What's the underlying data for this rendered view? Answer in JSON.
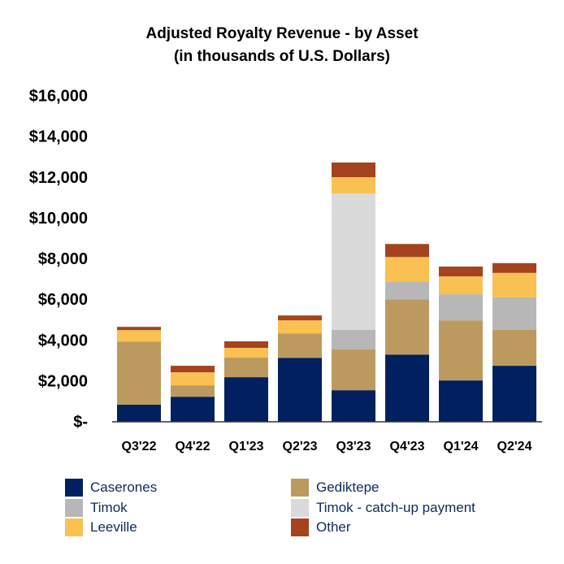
{
  "chart_data": {
    "type": "bar",
    "stacked": true,
    "title": "Adjusted Royalty Revenue - by Asset",
    "subtitle": "(in thousands of U.S. Dollars)",
    "xlabel": "",
    "ylabel": "",
    "ylim": [
      0,
      16000
    ],
    "yticks": [
      0,
      2000,
      4000,
      6000,
      8000,
      10000,
      12000,
      14000,
      16000
    ],
    "ytick_labels": [
      "$-",
      "$2,000",
      "$4,000",
      "$6,000",
      "$8,000",
      "$10,000",
      "$12,000",
      "$14,000",
      "$16,000"
    ],
    "grid": false,
    "legend_position": "bottom",
    "categories": [
      "Q3'22",
      "Q4'22",
      "Q1'23",
      "Q2'23",
      "Q3'23",
      "Q4'23",
      "Q1'24",
      "Q2'24"
    ],
    "series": [
      {
        "name": "Caserones",
        "color": "#002060",
        "values": [
          820,
          1210,
          2170,
          3120,
          1530,
          3280,
          2010,
          2730
        ]
      },
      {
        "name": "Gediktepe",
        "color": "#BC9A5F",
        "values": [
          3100,
          560,
          960,
          1200,
          2000,
          2710,
          2950,
          1760
        ]
      },
      {
        "name": "Timok",
        "color": "#B7B7B7",
        "values": [
          0,
          0,
          0,
          0,
          960,
          880,
          1280,
          1600
        ]
      },
      {
        "name": "Timok - catch-up payment",
        "color": "#DADADA",
        "values": [
          0,
          0,
          0,
          0,
          6700,
          0,
          0,
          0
        ]
      },
      {
        "name": "Leeville",
        "color": "#F9C152",
        "values": [
          560,
          640,
          480,
          640,
          800,
          1200,
          880,
          1200
        ]
      },
      {
        "name": "Other",
        "color": "#A5431F",
        "values": [
          160,
          320,
          320,
          240,
          720,
          640,
          480,
          480
        ]
      }
    ]
  }
}
